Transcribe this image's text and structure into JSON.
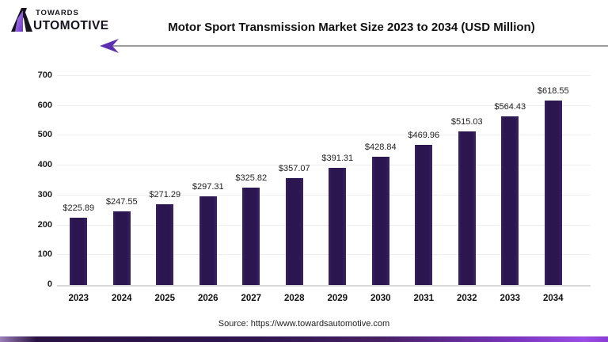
{
  "header": {
    "logo": {
      "word_top": "TOWARDS",
      "word_bottom_rest": "UTOMOTIVE"
    },
    "title": "Motor Sport Transmission Market Size 2023 to 2034 (USD Million)"
  },
  "footer": {
    "source": "Source: https://www.towardsautomotive.com"
  },
  "colors": {
    "bar": "#2b1650",
    "accent_purple": "#5b2fb0",
    "logo_accent_light": "#b18cf0",
    "logo_accent_dark": "#6d35c8",
    "grid": "#eeeeee",
    "baseline": "#d9d9d9",
    "bottom_bar_dark": "#2e1550",
    "bottom_bar_bright": "#9a4ce4"
  },
  "chart_data": {
    "type": "bar",
    "title": "Motor Sport Transmission Market Size 2023 to 2034 (USD Million)",
    "categories": [
      "2023",
      "2024",
      "2025",
      "2026",
      "2027",
      "2028",
      "2029",
      "2030",
      "2031",
      "2032",
      "2033",
      "2034"
    ],
    "values": [
      225.89,
      247.55,
      271.29,
      297.31,
      325.82,
      357.07,
      391.31,
      428.84,
      469.96,
      515.03,
      564.43,
      618.55
    ],
    "value_labels": [
      "$225.89",
      "$247.55",
      "$271.29",
      "$297.31",
      "$325.82",
      "$357.07",
      "$391.31",
      "$428.84",
      "$469.96",
      "$515.03",
      "$564.43",
      "$618.55"
    ],
    "xlabel": "",
    "ylabel": "",
    "ylim": [
      0,
      700
    ],
    "yticks": [
      0,
      100,
      200,
      300,
      400,
      500,
      600,
      700
    ],
    "grid": true,
    "legend": false,
    "source": "Source: https://www.towardsautomotive.com"
  }
}
